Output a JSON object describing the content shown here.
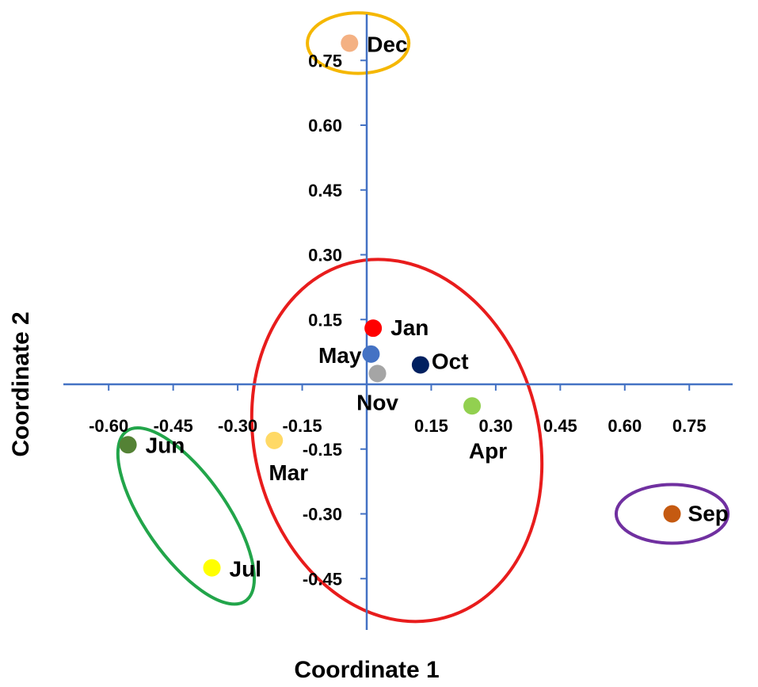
{
  "chart_data": {
    "type": "scatter",
    "title": "",
    "xlabel": "Coordinate 1",
    "ylabel": "Coordinate 2",
    "xlim": [
      -0.7,
      0.85
    ],
    "ylim": [
      -0.53,
      0.8
    ],
    "grid": false,
    "axis_color": "#4472C4",
    "x_ticks": [
      {
        "value": -0.6,
        "label": "-0.60"
      },
      {
        "value": -0.45,
        "label": "-0.45"
      },
      {
        "value": -0.3,
        "label": "-0.30"
      },
      {
        "value": -0.15,
        "label": "-0.15"
      },
      {
        "value": 0.15,
        "label": "0.15"
      },
      {
        "value": 0.3,
        "label": "0.30"
      },
      {
        "value": 0.45,
        "label": "0.45"
      },
      {
        "value": 0.6,
        "label": "0.60"
      },
      {
        "value": 0.75,
        "label": "0.75"
      }
    ],
    "y_ticks": [
      {
        "value": 0.75,
        "label": "0.75"
      },
      {
        "value": 0.6,
        "label": "0.60"
      },
      {
        "value": 0.45,
        "label": "0.45"
      },
      {
        "value": 0.3,
        "label": "0.30"
      },
      {
        "value": 0.15,
        "label": "0.15"
      },
      {
        "value": -0.15,
        "label": "-0.15"
      },
      {
        "value": -0.3,
        "label": "-0.30"
      },
      {
        "value": -0.45,
        "label": "-0.45"
      }
    ],
    "points": [
      {
        "name": "Dec",
        "x": -0.04,
        "y": 0.79,
        "color": "#F4B183"
      },
      {
        "name": "Jan",
        "x": 0.015,
        "y": 0.13,
        "color": "#FF0000"
      },
      {
        "name": "May",
        "x": 0.01,
        "y": 0.07,
        "color": "#4472C4"
      },
      {
        "name": "Nov",
        "x": 0.025,
        "y": 0.025,
        "color": "#A5A5A5"
      },
      {
        "name": "Oct",
        "x": 0.125,
        "y": 0.045,
        "color": "#002060"
      },
      {
        "name": "Apr",
        "x": 0.245,
        "y": -0.05,
        "color": "#92D050"
      },
      {
        "name": "Mar",
        "x": -0.215,
        "y": -0.13,
        "color": "#FFD966"
      },
      {
        "name": "Jun",
        "x": -0.555,
        "y": -0.14,
        "color": "#548235"
      },
      {
        "name": "Jul",
        "x": -0.36,
        "y": -0.425,
        "color": "#FFFF00"
      },
      {
        "name": "Sep",
        "x": 0.71,
        "y": -0.3,
        "color": "#C55A11"
      }
    ],
    "clusters": [
      {
        "members": [
          "Dec"
        ],
        "color": "#F5B700",
        "cx": -0.02,
        "cy": 0.79,
        "rx": 0.118,
        "ry": 0.07,
        "rotate": 0
      },
      {
        "members": [
          "Jan",
          "May",
          "Nov",
          "Oct",
          "Apr",
          "Mar"
        ],
        "color": "#E81C1C",
        "cx": 0.07,
        "cy": -0.13,
        "rx": 0.33,
        "ry": 0.425,
        "rotate": -15
      },
      {
        "members": [
          "Jun",
          "Jul"
        ],
        "color": "#22A54A",
        "cx": -0.42,
        "cy": -0.305,
        "rx": 0.095,
        "ry": 0.24,
        "rotate": -35
      },
      {
        "members": [
          "Sep"
        ],
        "color": "#7030A0",
        "cx": 0.71,
        "cy": -0.3,
        "rx": 0.13,
        "ry": 0.068,
        "rotate": 0
      }
    ]
  }
}
